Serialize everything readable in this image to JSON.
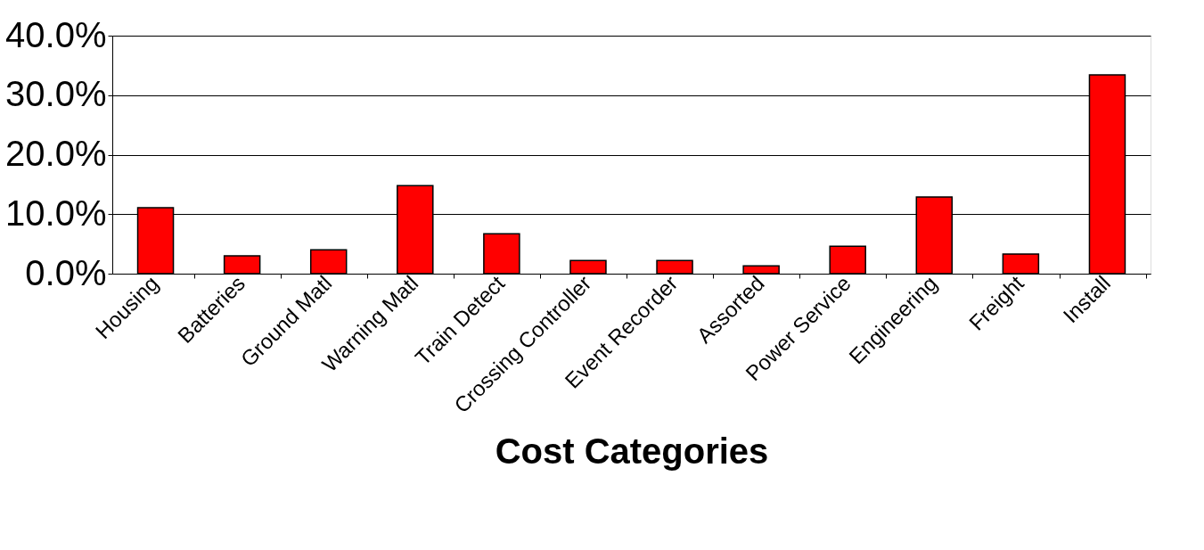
{
  "chart_data": {
    "type": "bar",
    "xlabel": "Cost Categories",
    "categories": [
      "Housing",
      "Batteries",
      "Ground Matl",
      "Warning Matl",
      "Train Detect",
      "Crossing Controller",
      "Event Recorder",
      "Assorted",
      "Power Service",
      "Engineering",
      "Freight",
      "Install"
    ],
    "values": [
      11.1,
      3.0,
      4.0,
      14.8,
      6.7,
      2.2,
      2.2,
      1.3,
      4.6,
      12.9,
      3.3,
      33.4
    ],
    "color": "#ff0000",
    "ylim": [
      0,
      40
    ],
    "yticks": [
      {
        "value": 0,
        "label": "0.0%"
      },
      {
        "value": 10,
        "label": "10.0%"
      },
      {
        "value": 20,
        "label": "20.0%"
      },
      {
        "value": 30,
        "label": "30.0%"
      },
      {
        "value": 40,
        "label": "40.0%"
      }
    ],
    "grid": "y"
  }
}
